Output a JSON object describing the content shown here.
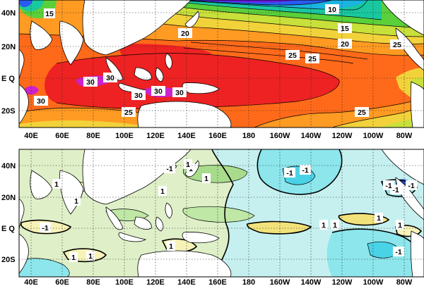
{
  "panels": [
    {
      "id": "top",
      "contour_labels": [
        "10",
        "15",
        "20",
        "25",
        "25",
        "30",
        "30",
        "30",
        "30",
        "30",
        "30",
        "20",
        "25",
        "15",
        "25",
        "25"
      ]
    },
    {
      "id": "bottom",
      "contour_labels": [
        "1",
        "1",
        "1",
        "-1",
        "-1",
        "-1",
        "-1",
        "1",
        "1",
        "1",
        "-1",
        "1",
        "-1",
        "1",
        "1",
        "1",
        "1",
        "-1",
        "1",
        "1",
        "-1"
      ]
    }
  ],
  "lat_labels": [
    "40N",
    "20N",
    "E Q",
    "20S"
  ],
  "lon_labels": [
    "40E",
    "60E",
    "80E",
    "100E",
    "120E",
    "140E",
    "160E",
    "180",
    "160W",
    "140W",
    "120W",
    "100W",
    "80W"
  ],
  "colors": {
    "sst_magenta": "#cc22cc",
    "sst_red": "#ee2222",
    "sst_orange": "#ff6a1a",
    "sst_light_orange": "#ff9a22",
    "sst_yellow": "#f2d23a",
    "sst_yellow_green": "#c8e03a",
    "sst_green": "#5ad03a",
    "sst_teal": "#1ac8a0",
    "sst_cyan": "#1ab4e0",
    "sst_blue": "#2a5af0",
    "sst_violet": "#6a1ae0",
    "anom_pale_green": "#dff0c8",
    "anom_light_green": "#bfe7a6",
    "anom_green": "#a8dc8c",
    "anom_pale_yellow": "#f6f2b8",
    "anom_yellow": "#f2e27a",
    "anom_pale_cyan": "#c6f0f0",
    "anom_cyan": "#8ce6ec",
    "anom_deep_cyan": "#4ad2e6",
    "anom_blue": "#2a4ac8"
  }
}
